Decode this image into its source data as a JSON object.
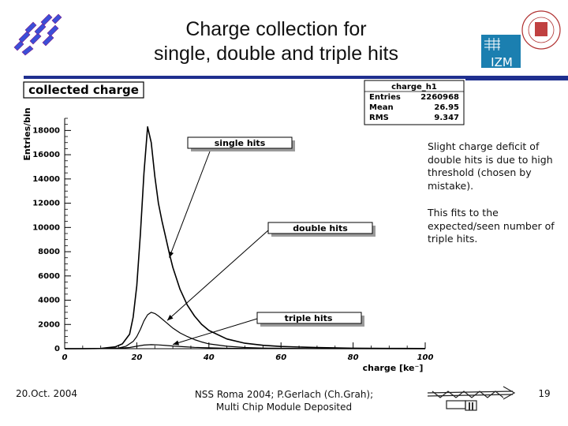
{
  "slide": {
    "title_line1": "Charge collection for",
    "title_line2": "single, double and triple hits",
    "note1": "Slight charge deficit of double hits is due to high threshold (chosen by mistake).",
    "note2": "This fits to the expected/seen number of triple hits.",
    "footer_date": "20.Oct. 2004",
    "footer_conf_line1": "NSS Roma 2004; P.Gerlach (Ch.Grah);",
    "footer_conf_line2": "Multi Chip Module Deposited",
    "page_number": "19",
    "logo_right_text": "IZM"
  },
  "chart_data": {
    "type": "line",
    "title": "collected charge",
    "xlabel": "charge [ke⁻]",
    "ylabel": "Entries/bin",
    "xlim": [
      0,
      100
    ],
    "ylim": [
      0,
      19000
    ],
    "xticks": [
      0,
      20,
      40,
      60,
      80,
      100
    ],
    "yticks": [
      0,
      2000,
      4000,
      6000,
      8000,
      10000,
      12000,
      14000,
      16000,
      18000
    ],
    "stats": {
      "name": "charge_h1",
      "rows": [
        {
          "label": "Entries",
          "value": "2260968"
        },
        {
          "label": "Mean",
          "value": "26.95"
        },
        {
          "label": "RMS",
          "value": "9.347"
        }
      ]
    },
    "annotations": [
      "single hits",
      "double hits",
      "triple hits"
    ],
    "series": [
      {
        "x": [
          0,
          5,
          10,
          14,
          16,
          18,
          19,
          20,
          21,
          22,
          23,
          24,
          25,
          26,
          27,
          28,
          29,
          30,
          32,
          34,
          36,
          38,
          40,
          45,
          50,
          55,
          60,
          70,
          80,
          90,
          100
        ],
        "y": [
          0,
          0,
          20,
          150,
          400,
          1200,
          2600,
          5200,
          9500,
          14500,
          18300,
          17000,
          14200,
          12000,
          10500,
          9200,
          7900,
          6700,
          4900,
          3600,
          2700,
          2000,
          1500,
          800,
          450,
          280,
          180,
          90,
          40,
          20,
          10
        ]
      },
      {
        "x": [
          0,
          10,
          15,
          17,
          19,
          20,
          21,
          22,
          23,
          24,
          25,
          26,
          28,
          30,
          32,
          34,
          36,
          38,
          40,
          45,
          50,
          55,
          60,
          70,
          80,
          100
        ],
        "y": [
          0,
          10,
          60,
          200,
          600,
          1000,
          1600,
          2300,
          2800,
          3000,
          2900,
          2700,
          2200,
          1700,
          1300,
          1000,
          750,
          550,
          400,
          200,
          100,
          50,
          30,
          10,
          5,
          0
        ]
      },
      {
        "x": [
          0,
          10,
          15,
          18,
          20,
          22,
          24,
          26,
          28,
          30,
          33,
          36,
          40,
          45,
          50,
          60,
          80,
          100
        ],
        "y": [
          0,
          5,
          30,
          100,
          200,
          300,
          330,
          310,
          270,
          220,
          160,
          110,
          70,
          35,
          20,
          8,
          2,
          0
        ]
      }
    ]
  }
}
